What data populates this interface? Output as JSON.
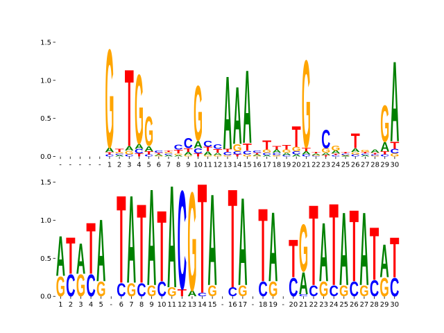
{
  "chart_data": [
    {
      "type": "logo",
      "categories": [
        "-",
        "-",
        "-",
        "-",
        "-",
        "1",
        "2",
        "3",
        "4",
        "5",
        "6",
        "7",
        "8",
        "9",
        "10",
        "11",
        "12",
        "13",
        "14",
        "15",
        "16",
        "17",
        "18",
        "19",
        "20",
        "21",
        "22",
        "23",
        "24",
        "25",
        "26",
        "27",
        "28",
        "29",
        "30"
      ],
      "series": [
        {
          "name": "A",
          "color": "#008000",
          "values": [
            0,
            0,
            0,
            0,
            0,
            0.06,
            0.02,
            0.06,
            0.07,
            0.07,
            0.02,
            0.02,
            0.02,
            0.04,
            0.1,
            0.05,
            0.03,
            1.0,
            0.78,
            1.0,
            0.02,
            0.02,
            0.04,
            0.03,
            0.03,
            0.04,
            0.02,
            0.03,
            0.04,
            0.01,
            0.05,
            0.02,
            0.04,
            0.12,
            1.1
          ]
        },
        {
          "name": "C",
          "color": "#0000ff",
          "values": [
            0,
            0,
            0,
            0,
            0,
            0.03,
            0.02,
            0.03,
            0.06,
            0.03,
            0.03,
            0.02,
            0.07,
            0.14,
            0.07,
            0.08,
            0.06,
            0.04,
            0.04,
            0.05,
            0.03,
            0.03,
            0.03,
            0.02,
            0.04,
            0.03,
            0.01,
            0.25,
            0.02,
            0.02,
            0.03,
            0.02,
            0.02,
            0.03,
            0.06
          ]
        },
        {
          "name": "G",
          "color": "#ffa500",
          "values": [
            0,
            0,
            0,
            0,
            0,
            1.35,
            0.02,
            0.05,
            0.95,
            0.4,
            0.01,
            0.02,
            0.02,
            0.02,
            0.75,
            0.02,
            0.02,
            0.02,
            0.1,
            0.03,
            0.01,
            0.04,
            0.02,
            0.04,
            0.06,
            1.2,
            0.01,
            0.06,
            0.07,
            0.01,
            0.03,
            0.03,
            0.01,
            0.5,
            0.04
          ]
        },
        {
          "name": "T",
          "color": "#ff0000",
          "values": [
            0,
            0,
            0,
            0,
            0,
            0.03,
            0.04,
            1.05,
            0.04,
            0.04,
            0.02,
            0.02,
            0.05,
            0.05,
            0.04,
            0.06,
            0.05,
            0.04,
            0.03,
            0.1,
            0.02,
            0.12,
            0.05,
            0.06,
            0.28,
            0.05,
            0.02,
            0.02,
            0.02,
            0.02,
            0.2,
            0.02,
            0.02,
            0.04,
            0.1
          ]
        }
      ],
      "ylim": [
        0,
        1.53
      ],
      "yticks": [
        {
          "value": 0,
          "label": "0.0"
        },
        0.5,
        {
          "value": 1,
          "label": "1.0"
        },
        1.5
      ]
    },
    {
      "type": "logo",
      "categories": [
        "1",
        "2",
        "3",
        "4",
        "5",
        "-",
        "6",
        "7",
        "8",
        "9",
        "10",
        "11",
        "12",
        "13",
        "14",
        "15",
        "-",
        "16",
        "17",
        "-",
        "18",
        "19",
        "-",
        "20",
        "21",
        "22",
        "23",
        "24",
        "25",
        "26",
        "27",
        "28",
        "29",
        "30"
      ],
      "series": [
        {
          "name": "A",
          "color": "#008000",
          "values": [
            0.55,
            0,
            0.42,
            0,
            0.85,
            0,
            0,
            1.2,
            0,
            1.32,
            0,
            1.4,
            0,
            0.08,
            0,
            1.25,
            0,
            0,
            1.2,
            0,
            0,
            0.95,
            0,
            0,
            0.3,
            0,
            0.8,
            0,
            1.0,
            0,
            1.0,
            0,
            0.45,
            0
          ]
        },
        {
          "name": "C",
          "color": "#0000ff",
          "values": [
            0,
            0.3,
            0,
            0.3,
            0,
            0,
            0.18,
            0,
            0.18,
            0,
            0.2,
            0,
            1.35,
            0,
            0.05,
            0,
            0,
            0.12,
            0,
            0,
            0.2,
            0,
            0,
            0.25,
            0.03,
            0.15,
            0,
            0.15,
            0,
            0.2,
            0,
            0.22,
            0,
            0.25
          ]
        },
        {
          "name": "G",
          "color": "#ffa500",
          "values": [
            0.27,
            0,
            0.3,
            0,
            0.2,
            0,
            0,
            0.18,
            0,
            0.15,
            0,
            0.12,
            0,
            1.35,
            0,
            0.15,
            0,
            0,
            0.15,
            0,
            0,
            0.2,
            0,
            0,
            0.65,
            0,
            0.2,
            0,
            0.15,
            0,
            0.15,
            0,
            0.25,
            0
          ]
        },
        {
          "name": "T",
          "color": "#ff0000",
          "values": [
            0,
            0.5,
            0,
            0.7,
            0,
            0,
            1.2,
            0,
            1.08,
            0,
            0.97,
            0,
            0.1,
            0,
            1.5,
            0,
            0,
            1.35,
            0,
            0,
            1.0,
            0,
            0,
            0.52,
            0,
            1.1,
            0,
            1.12,
            0,
            0.98,
            0,
            0.72,
            0,
            0.55
          ]
        }
      ],
      "ylim": [
        0,
        1.53
      ],
      "yticks": [
        {
          "value": 0,
          "label": "0.0"
        },
        0.5,
        {
          "value": 1,
          "label": "1.0"
        },
        1.5
      ]
    }
  ]
}
